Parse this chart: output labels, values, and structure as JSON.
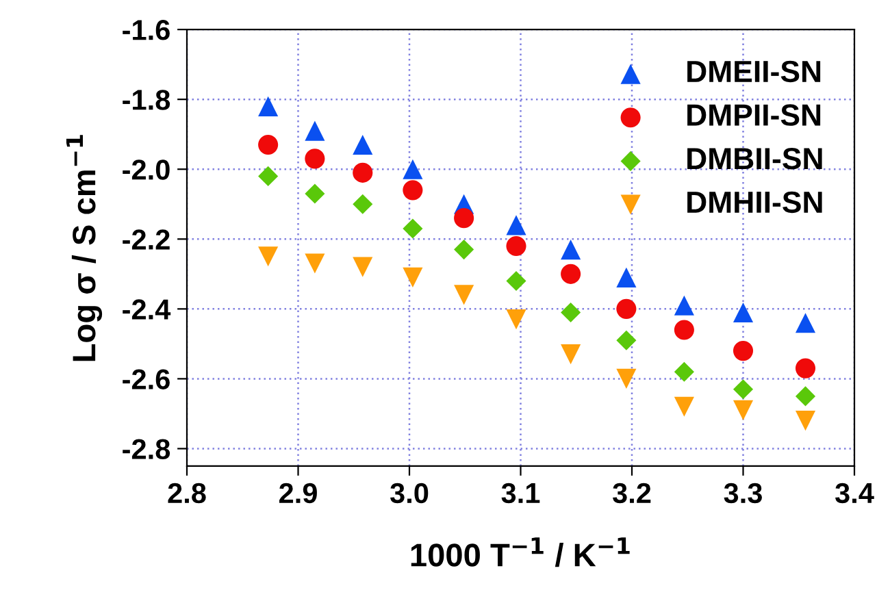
{
  "chart_data": {
    "type": "scatter",
    "xlabel": "1000 T$^{−1}$ / K$^{−1}$",
    "ylabel": "Log σ / S cm$^{−1}$",
    "x": [
      2.873,
      2.915,
      2.958,
      3.003,
      3.049,
      3.096,
      3.145,
      3.195,
      3.247,
      3.3,
      3.356
    ],
    "series": [
      {
        "name": "DMEII-SN",
        "color": "#0a50f0",
        "marker": "triangle",
        "values": [
          -1.82,
          -1.89,
          -1.93,
          -2.0,
          -2.1,
          -2.16,
          -2.23,
          -2.31,
          -2.39,
          -2.41,
          -2.44
        ]
      },
      {
        "name": "DMPII-SN",
        "color": "#f00a0a",
        "marker": "circle",
        "values": [
          -1.93,
          -1.97,
          -2.01,
          -2.06,
          -2.14,
          -2.22,
          -2.3,
          -2.4,
          -2.46,
          -2.52,
          -2.57
        ]
      },
      {
        "name": "DMBII-SN",
        "color": "#5ac80a",
        "marker": "diamond",
        "values": [
          -2.02,
          -2.07,
          -2.1,
          -2.17,
          -2.23,
          -2.32,
          -2.41,
          -2.49,
          -2.58,
          -2.63,
          -2.65
        ]
      },
      {
        "name": "DMHII-SN",
        "color": "#ffa00a",
        "marker": "triangle_down",
        "values": [
          -2.25,
          -2.27,
          -2.28,
          -2.31,
          -2.36,
          -2.43,
          -2.53,
          -2.6,
          -2.68,
          -2.69,
          -2.72
        ]
      }
    ],
    "xlim": [
      2.8,
      3.4
    ],
    "xticks": [
      2.8,
      2.9,
      {
        "value": 3,
        "label": "3.0"
      },
      3.1,
      3.2,
      3.3,
      3.4
    ],
    "ylim": [
      -2.85,
      -1.6
    ],
    "yticks": [
      -2.8,
      -2.6,
      -2.4,
      -2.2,
      {
        "value": -2,
        "label": "-2.0"
      },
      -1.8,
      -1.6
    ],
    "grid": true,
    "legend": "top right"
  }
}
